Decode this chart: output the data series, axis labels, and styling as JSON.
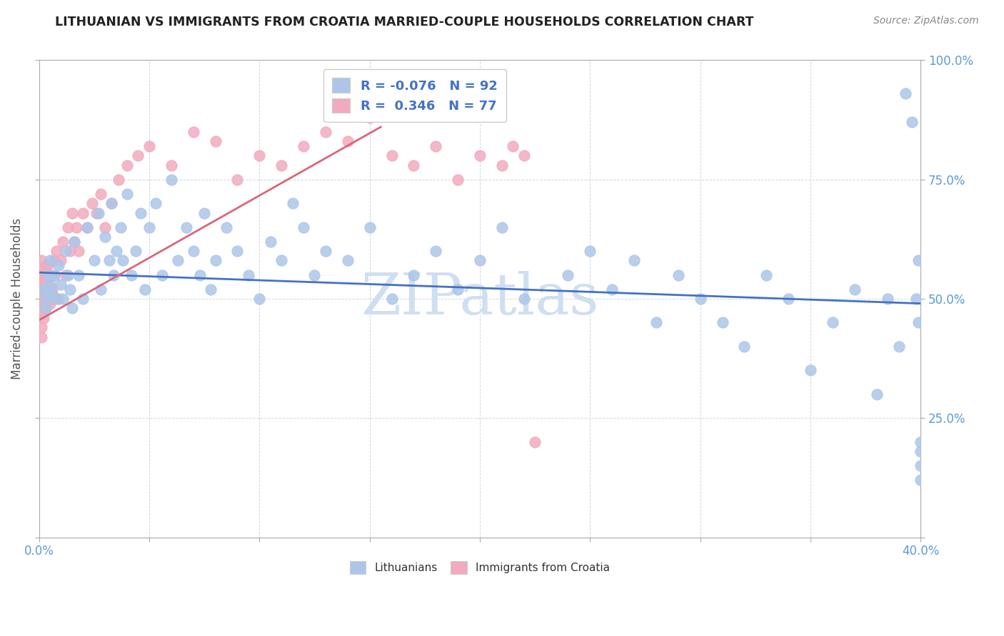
{
  "title": "LITHUANIAN VS IMMIGRANTS FROM CROATIA MARRIED-COUPLE HOUSEHOLDS CORRELATION CHART",
  "source": "Source: ZipAtlas.com",
  "ylabel": "Married-couple Households",
  "xlim": [
    0.0,
    0.4
  ],
  "ylim": [
    0.0,
    1.0
  ],
  "xtick_vals": [
    0.0,
    0.05,
    0.1,
    0.15,
    0.2,
    0.25,
    0.3,
    0.35,
    0.4
  ],
  "ytick_vals": [
    0.0,
    0.25,
    0.5,
    0.75,
    1.0
  ],
  "blue_R": -0.076,
  "blue_N": 92,
  "pink_R": 0.346,
  "pink_N": 77,
  "blue_color": "#adc6e8",
  "pink_color": "#f2abbe",
  "blue_line_color": "#4472c4",
  "pink_line_color": "#d9667a",
  "watermark": "ZIPatlas",
  "watermark_color": "#d0dff0",
  "blue_trend_x": [
    0.0,
    0.4
  ],
  "blue_trend_y": [
    0.555,
    0.49
  ],
  "pink_trend_x": [
    0.0,
    0.155
  ],
  "pink_trend_y": [
    0.455,
    0.86
  ],
  "blue_dots_x": [
    0.002,
    0.003,
    0.003,
    0.004,
    0.004,
    0.005,
    0.005,
    0.006,
    0.007,
    0.008,
    0.009,
    0.01,
    0.011,
    0.012,
    0.013,
    0.014,
    0.015,
    0.016,
    0.018,
    0.02,
    0.022,
    0.025,
    0.027,
    0.028,
    0.03,
    0.032,
    0.033,
    0.034,
    0.035,
    0.037,
    0.038,
    0.04,
    0.042,
    0.044,
    0.046,
    0.048,
    0.05,
    0.053,
    0.056,
    0.06,
    0.063,
    0.067,
    0.07,
    0.073,
    0.075,
    0.078,
    0.08,
    0.085,
    0.09,
    0.095,
    0.1,
    0.105,
    0.11,
    0.115,
    0.12,
    0.125,
    0.13,
    0.14,
    0.15,
    0.16,
    0.17,
    0.18,
    0.19,
    0.2,
    0.21,
    0.22,
    0.24,
    0.25,
    0.26,
    0.27,
    0.28,
    0.29,
    0.3,
    0.31,
    0.32,
    0.33,
    0.34,
    0.35,
    0.36,
    0.37,
    0.38,
    0.385,
    0.39,
    0.393,
    0.396,
    0.398,
    0.399,
    0.399,
    0.4,
    0.4,
    0.4,
    0.4
  ],
  "blue_dots_y": [
    0.52,
    0.5,
    0.48,
    0.55,
    0.52,
    0.53,
    0.58,
    0.51,
    0.55,
    0.5,
    0.57,
    0.53,
    0.5,
    0.6,
    0.55,
    0.52,
    0.48,
    0.62,
    0.55,
    0.5,
    0.65,
    0.58,
    0.68,
    0.52,
    0.63,
    0.58,
    0.7,
    0.55,
    0.6,
    0.65,
    0.58,
    0.72,
    0.55,
    0.6,
    0.68,
    0.52,
    0.65,
    0.7,
    0.55,
    0.75,
    0.58,
    0.65,
    0.6,
    0.55,
    0.68,
    0.52,
    0.58,
    0.65,
    0.6,
    0.55,
    0.5,
    0.62,
    0.58,
    0.7,
    0.65,
    0.55,
    0.6,
    0.58,
    0.65,
    0.5,
    0.55,
    0.6,
    0.52,
    0.58,
    0.65,
    0.5,
    0.55,
    0.6,
    0.52,
    0.58,
    0.45,
    0.55,
    0.5,
    0.45,
    0.4,
    0.55,
    0.5,
    0.35,
    0.45,
    0.52,
    0.3,
    0.5,
    0.4,
    0.93,
    0.87,
    0.5,
    0.58,
    0.45,
    0.15,
    0.12,
    0.2,
    0.18
  ],
  "pink_dots_x": [
    0.0005,
    0.001,
    0.001,
    0.001,
    0.001,
    0.001,
    0.001,
    0.001,
    0.001,
    0.001,
    0.001,
    0.001,
    0.002,
    0.002,
    0.002,
    0.002,
    0.002,
    0.002,
    0.002,
    0.002,
    0.003,
    0.003,
    0.003,
    0.003,
    0.003,
    0.003,
    0.004,
    0.004,
    0.004,
    0.005,
    0.005,
    0.005,
    0.006,
    0.006,
    0.007,
    0.007,
    0.008,
    0.009,
    0.01,
    0.011,
    0.012,
    0.013,
    0.014,
    0.015,
    0.016,
    0.017,
    0.018,
    0.02,
    0.022,
    0.024,
    0.026,
    0.028,
    0.03,
    0.033,
    0.036,
    0.04,
    0.045,
    0.05,
    0.06,
    0.07,
    0.08,
    0.09,
    0.1,
    0.11,
    0.12,
    0.13,
    0.14,
    0.15,
    0.16,
    0.17,
    0.18,
    0.19,
    0.2,
    0.21,
    0.215,
    0.22,
    0.225
  ],
  "pink_dots_y": [
    0.5,
    0.52,
    0.48,
    0.55,
    0.47,
    0.54,
    0.56,
    0.49,
    0.51,
    0.44,
    0.42,
    0.58,
    0.53,
    0.5,
    0.48,
    0.55,
    0.52,
    0.46,
    0.54,
    0.51,
    0.49,
    0.57,
    0.52,
    0.55,
    0.5,
    0.48,
    0.53,
    0.51,
    0.57,
    0.52,
    0.49,
    0.55,
    0.5,
    0.52,
    0.58,
    0.55,
    0.6,
    0.5,
    0.58,
    0.62,
    0.55,
    0.65,
    0.6,
    0.68,
    0.62,
    0.65,
    0.6,
    0.68,
    0.65,
    0.7,
    0.68,
    0.72,
    0.65,
    0.7,
    0.75,
    0.78,
    0.8,
    0.82,
    0.78,
    0.85,
    0.83,
    0.75,
    0.8,
    0.78,
    0.82,
    0.85,
    0.83,
    0.88,
    0.8,
    0.78,
    0.82,
    0.75,
    0.8,
    0.78,
    0.82,
    0.8,
    0.2
  ]
}
